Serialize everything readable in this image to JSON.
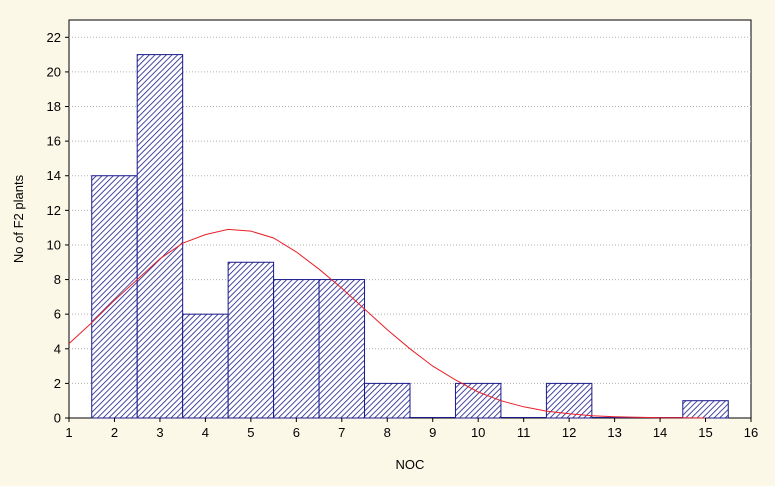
{
  "chart_data": {
    "type": "bar",
    "title": "",
    "xlabel": "NOC",
    "ylabel": "No of F2 plants",
    "xlim": [
      1,
      16
    ],
    "ylim": [
      0,
      23
    ],
    "x_ticks": [
      1,
      2,
      3,
      4,
      5,
      6,
      7,
      8,
      9,
      10,
      11,
      12,
      13,
      14,
      15,
      16
    ],
    "y_ticks": [
      0,
      2,
      4,
      6,
      8,
      10,
      12,
      14,
      16,
      18,
      20,
      22
    ],
    "grid": "horizontal-dotted",
    "bins": [
      2,
      3,
      4,
      5,
      6,
      7,
      8,
      9,
      10,
      11,
      12,
      13,
      14,
      15
    ],
    "values": [
      14,
      21,
      6,
      9,
      8,
      8,
      2,
      0,
      2,
      0,
      2,
      0,
      0,
      1
    ],
    "fit_curve": {
      "type": "normal",
      "color": "#e8202a",
      "x": [
        1,
        1.5,
        2,
        2.5,
        3,
        3.5,
        4,
        4.5,
        5,
        5.5,
        6,
        6.5,
        7,
        7.5,
        8,
        8.5,
        9,
        9.5,
        10,
        10.5,
        11,
        11.5,
        12,
        12.5,
        13,
        13.5,
        14,
        14.5,
        15
      ],
      "y": [
        4.3,
        5.5,
        6.8,
        8.0,
        9.2,
        10.1,
        10.6,
        10.9,
        10.8,
        10.4,
        9.6,
        8.6,
        7.5,
        6.3,
        5.1,
        4.0,
        3.0,
        2.2,
        1.5,
        1.0,
        0.65,
        0.4,
        0.24,
        0.13,
        0.07,
        0.04,
        0.02,
        0.01,
        0.0
      ]
    },
    "colors": {
      "bar_stroke": "#1a1a8c",
      "hatch": "#1a1a8c",
      "bar_fill": "#ffffff",
      "background": "#fcf8e8",
      "plot_background": "#ffffff",
      "grid": "#b0b0b0"
    }
  }
}
